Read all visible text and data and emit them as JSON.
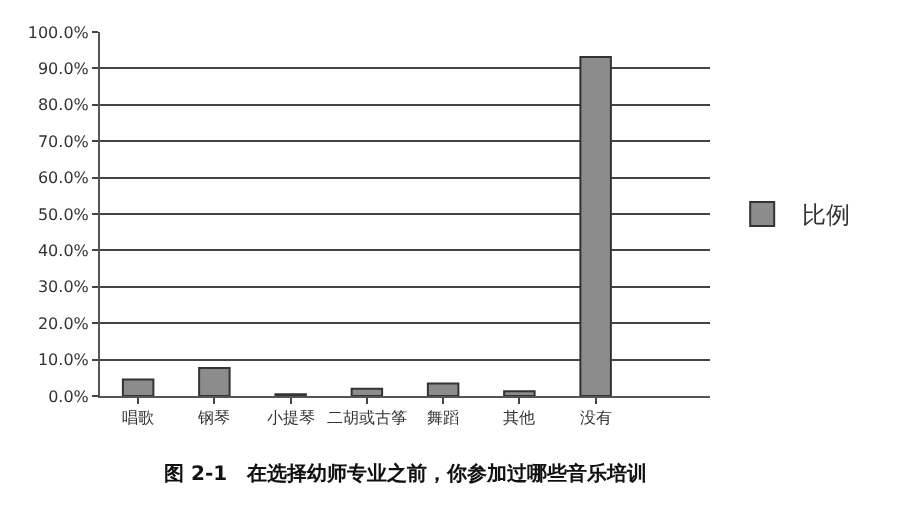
{
  "chart_data": {
    "type": "bar",
    "categories": [
      "唱歌",
      "钢琴",
      "小提琴",
      "二胡或古筝",
      "舞蹈",
      "其他",
      "没有",
      null
    ],
    "series": [
      {
        "name": "比例",
        "color": "#8c8c8c",
        "values": [
          4.5,
          7.7,
          0.5,
          2.0,
          3.4,
          1.3,
          93.1,
          null
        ]
      }
    ],
    "ylim": [
      0,
      100
    ],
    "yticks": [
      {
        "value": 0,
        "label": "0.0%"
      },
      {
        "value": 10,
        "label": "10.0%"
      },
      {
        "value": 20,
        "label": "20.0%"
      },
      {
        "value": 30,
        "label": "30.0%"
      },
      {
        "value": 40,
        "label": "40.0%"
      },
      {
        "value": 50,
        "label": "50.0%"
      },
      {
        "value": 60,
        "label": "60.0%"
      },
      {
        "value": 70,
        "label": "70.0%"
      },
      {
        "value": 80,
        "label": "80.0%"
      },
      {
        "value": 90,
        "label": "90.0%"
      },
      {
        "value": 100,
        "label": "100.0%"
      }
    ],
    "grid": "y",
    "legend": "right",
    "annotations": [
      "图 2-1　在选择幼师专业之前，你参加过哪些音乐培训"
    ]
  }
}
